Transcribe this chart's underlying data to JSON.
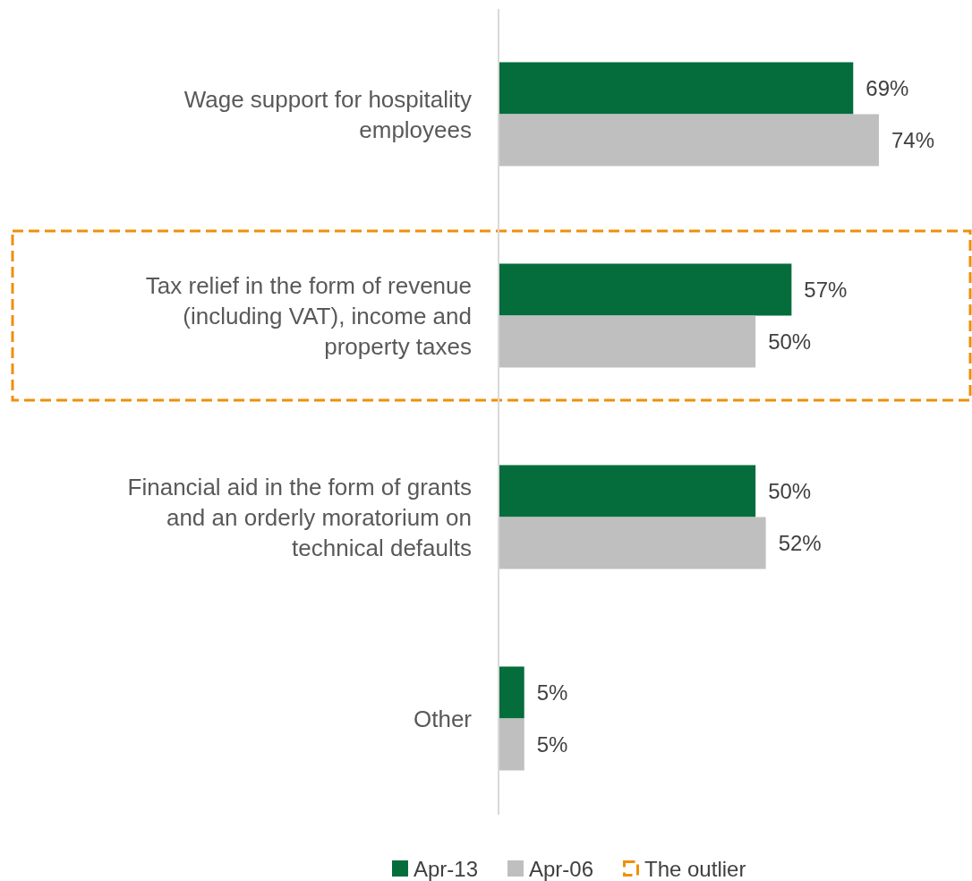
{
  "chart_data": {
    "type": "bar",
    "orientation": "horizontal",
    "categories": [
      "Wage support for hospitality employees",
      "Tax relief in the form of revenue (including VAT), income and property taxes",
      "Financial aid in the form of grants and an orderly moratorium on technical defaults",
      "Other"
    ],
    "series": [
      {
        "name": "Apr-13",
        "color": "#056d3b",
        "values": [
          69,
          57,
          50,
          5
        ],
        "value_labels": [
          "69%",
          "57%",
          "50%",
          "5%"
        ]
      },
      {
        "name": "Apr-06",
        "color": "#bfbfbf",
        "values": [
          74,
          50,
          52,
          5
        ],
        "value_labels": [
          "74%",
          "50%",
          "52%",
          "5%"
        ]
      }
    ],
    "annotations": [
      "The outlier"
    ],
    "legend": "bottom"
  }
}
